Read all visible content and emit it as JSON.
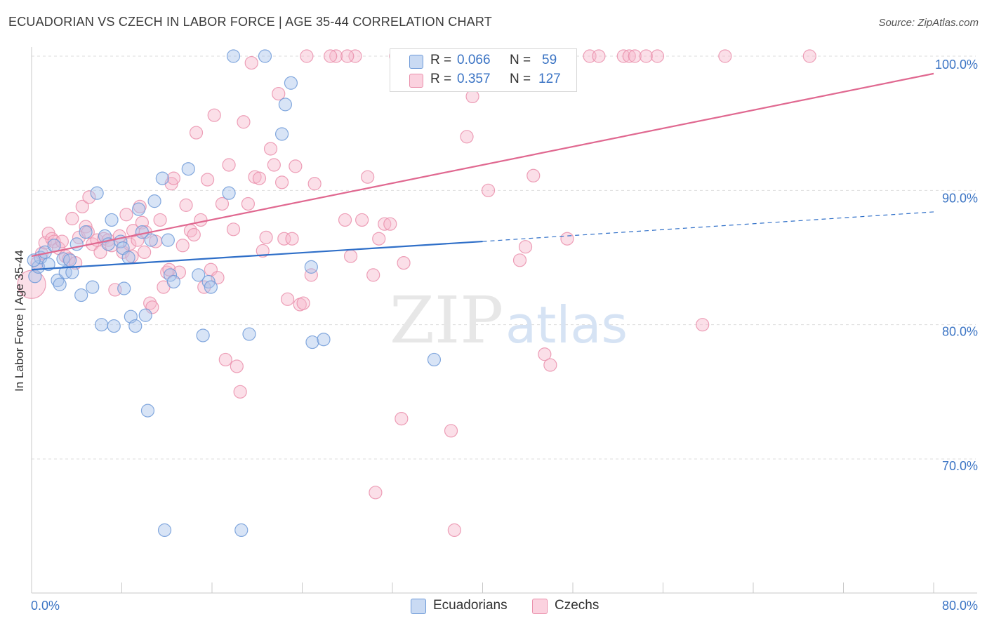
{
  "header": {
    "title": "ECUADORIAN VS CZECH IN LABOR FORCE | AGE 35-44 CORRELATION CHART",
    "source": "Source: ZipAtlas.com"
  },
  "watermark": {
    "zip": "ZIP",
    "atlas": "atlas"
  },
  "legend": {
    "rows": [
      {
        "r_label": "R = ",
        "r_value": "0.066",
        "n_label": "N = ",
        "n_value": "59",
        "color": "#a9c4ec"
      },
      {
        "r_label": "R = ",
        "r_value": "0.357",
        "n_label": "N = ",
        "n_value": "127",
        "color": "#f6b8cb"
      }
    ],
    "bottom": [
      "Ecuadorians",
      "Czechs"
    ]
  },
  "colors": {
    "ecuadorians_fill": "#a9c4ec",
    "ecuadorians_stroke": "#6e9ad8",
    "ecuadorians_line": "#2f6fc8",
    "czechs_fill": "#f6b8cb",
    "czechs_stroke": "#ea8fab",
    "czechs_line": "#e06890",
    "axis_label": "#3b74c4",
    "grid": "#dddddd"
  },
  "chart_data": {
    "type": "scatter",
    "title": "ECUADORIAN VS CZECH IN LABOR FORCE | AGE 35-44 CORRELATION CHART",
    "xlabel": "",
    "ylabel": "In Labor Force | Age 35-44",
    "xlim": [
      0,
      80
    ],
    "ylim": [
      61,
      100.5
    ],
    "x_tick_labels": [
      "0.0%",
      "80.0%"
    ],
    "y_ticks": [
      70,
      80,
      90,
      100
    ],
    "y_tick_labels": [
      "70.0%",
      "80.0%",
      "90.0%",
      "100.0%"
    ],
    "grid": true,
    "legend_position": "top-center",
    "series": [
      {
        "name": "Ecuadorians",
        "R": 0.066,
        "N": 59,
        "trend": {
          "x": [
            0,
            40
          ],
          "y": [
            84.1,
            86.2
          ],
          "dashed_extension": {
            "x": [
              40,
              80
            ],
            "y": [
              86.2,
              88.4
            ]
          }
        },
        "points": [
          [
            0.3,
            83.6
          ],
          [
            0.6,
            84.3
          ],
          [
            0.8,
            85.0
          ],
          [
            1.2,
            85.4
          ],
          [
            1.5,
            84.5
          ],
          [
            2.0,
            85.9
          ],
          [
            2.3,
            83.3
          ],
          [
            2.5,
            83.0
          ],
          [
            2.8,
            84.9
          ],
          [
            3.0,
            83.9
          ],
          [
            3.4,
            84.8
          ],
          [
            3.6,
            83.9
          ],
          [
            4.0,
            86.0
          ],
          [
            4.4,
            82.2
          ],
          [
            4.8,
            86.9
          ],
          [
            5.4,
            82.8
          ],
          [
            5.8,
            89.8
          ],
          [
            6.2,
            80.0
          ],
          [
            6.5,
            86.6
          ],
          [
            6.8,
            86.0
          ],
          [
            7.1,
            87.8
          ],
          [
            7.3,
            79.9
          ],
          [
            7.9,
            86.2
          ],
          [
            8.1,
            85.7
          ],
          [
            8.2,
            82.7
          ],
          [
            8.6,
            85.0
          ],
          [
            8.8,
            80.6
          ],
          [
            9.2,
            79.9
          ],
          [
            9.5,
            88.6
          ],
          [
            9.8,
            86.9
          ],
          [
            10.1,
            80.7
          ],
          [
            10.3,
            73.6
          ],
          [
            10.6,
            86.3
          ],
          [
            10.9,
            89.2
          ],
          [
            11.6,
            90.9
          ],
          [
            11.8,
            64.7
          ],
          [
            12.1,
            86.3
          ],
          [
            12.3,
            83.7
          ],
          [
            12.6,
            83.2
          ],
          [
            13.9,
            91.6
          ],
          [
            14.8,
            83.7
          ],
          [
            15.2,
            79.2
          ],
          [
            15.7,
            83.2
          ],
          [
            15.9,
            82.8
          ],
          [
            17.5,
            89.8
          ],
          [
            17.9,
            100.0
          ],
          [
            18.6,
            64.7
          ],
          [
            19.3,
            79.3
          ],
          [
            20.7,
            100.0
          ],
          [
            22.2,
            94.2
          ],
          [
            22.5,
            96.4
          ],
          [
            23.0,
            98.0
          ],
          [
            24.8,
            84.3
          ],
          [
            24.9,
            78.7
          ],
          [
            25.9,
            78.9
          ],
          [
            35.7,
            77.4
          ],
          [
            34.8,
            100.0
          ],
          [
            35.2,
            99.8
          ],
          [
            0.2,
            84.8
          ]
        ]
      },
      {
        "name": "Czechs",
        "R": 0.357,
        "N": 127,
        "trend": {
          "x": [
            0,
            80
          ],
          "y": [
            85.1,
            98.7
          ]
        },
        "points": [
          [
            0.0,
            83.0
          ],
          [
            0.5,
            84.6
          ],
          [
            0.9,
            85.3
          ],
          [
            1.2,
            86.1
          ],
          [
            1.5,
            86.8
          ],
          [
            1.8,
            86.4
          ],
          [
            2.0,
            86.2
          ],
          [
            2.4,
            85.7
          ],
          [
            2.7,
            86.2
          ],
          [
            3.0,
            85.1
          ],
          [
            3.3,
            84.9
          ],
          [
            3.6,
            87.9
          ],
          [
            3.9,
            84.6
          ],
          [
            4.2,
            86.5
          ],
          [
            4.5,
            88.8
          ],
          [
            4.8,
            87.3
          ],
          [
            5.0,
            86.9
          ],
          [
            5.1,
            89.5
          ],
          [
            5.4,
            86.0
          ],
          [
            5.8,
            86.3
          ],
          [
            6.1,
            85.4
          ],
          [
            6.4,
            86.4
          ],
          [
            6.8,
            86.3
          ],
          [
            7.1,
            85.9
          ],
          [
            7.4,
            82.6
          ],
          [
            7.8,
            86.6
          ],
          [
            8.1,
            85.4
          ],
          [
            8.4,
            88.2
          ],
          [
            8.7,
            86.0
          ],
          [
            8.9,
            85.1
          ],
          [
            9.0,
            87.0
          ],
          [
            9.4,
            86.3
          ],
          [
            9.6,
            88.8
          ],
          [
            9.8,
            87.6
          ],
          [
            10.0,
            85.4
          ],
          [
            10.1,
            86.9
          ],
          [
            10.5,
            81.6
          ],
          [
            10.7,
            81.3
          ],
          [
            11.0,
            86.2
          ],
          [
            11.4,
            87.8
          ],
          [
            11.7,
            82.8
          ],
          [
            12.0,
            83.9
          ],
          [
            12.2,
            84.1
          ],
          [
            12.4,
            90.5
          ],
          [
            12.6,
            90.9
          ],
          [
            13.1,
            83.9
          ],
          [
            13.4,
            85.9
          ],
          [
            13.7,
            88.9
          ],
          [
            14.1,
            87.0
          ],
          [
            14.4,
            86.7
          ],
          [
            14.6,
            94.3
          ],
          [
            15.0,
            87.8
          ],
          [
            15.3,
            82.8
          ],
          [
            15.6,
            90.8
          ],
          [
            15.9,
            84.1
          ],
          [
            16.2,
            95.6
          ],
          [
            16.5,
            83.5
          ],
          [
            16.9,
            89.0
          ],
          [
            17.2,
            77.4
          ],
          [
            17.5,
            91.9
          ],
          [
            17.9,
            87.1
          ],
          [
            18.2,
            76.9
          ],
          [
            18.5,
            75.0
          ],
          [
            18.8,
            95.1
          ],
          [
            19.2,
            89.0
          ],
          [
            19.5,
            99.5
          ],
          [
            19.8,
            91.0
          ],
          [
            20.2,
            90.9
          ],
          [
            20.5,
            85.5
          ],
          [
            20.8,
            86.5
          ],
          [
            21.2,
            93.1
          ],
          [
            21.5,
            91.9
          ],
          [
            21.9,
            97.2
          ],
          [
            22.2,
            90.6
          ],
          [
            22.4,
            86.4
          ],
          [
            22.7,
            81.9
          ],
          [
            23.1,
            86.4
          ],
          [
            23.4,
            91.8
          ],
          [
            23.8,
            81.5
          ],
          [
            24.1,
            81.6
          ],
          [
            24.4,
            100.0
          ],
          [
            24.8,
            83.7
          ],
          [
            25.1,
            90.5
          ],
          [
            27.0,
            100.0
          ],
          [
            27.8,
            87.8
          ],
          [
            28.3,
            85.1
          ],
          [
            28.7,
            100.0
          ],
          [
            29.3,
            87.8
          ],
          [
            29.8,
            91.0
          ],
          [
            30.3,
            83.7
          ],
          [
            30.8,
            86.4
          ],
          [
            31.3,
            87.5
          ],
          [
            31.8,
            87.5
          ],
          [
            32.3,
            100.0
          ],
          [
            32.8,
            73.0
          ],
          [
            33.0,
            84.6
          ],
          [
            35.0,
            100.0
          ],
          [
            37.0,
            100.0
          ],
          [
            37.2,
            72.1
          ],
          [
            37.5,
            64.7
          ],
          [
            38.0,
            100.0
          ],
          [
            38.6,
            94.0
          ],
          [
            39.1,
            97.0
          ],
          [
            40.5,
            90.0
          ],
          [
            41.5,
            100.0
          ],
          [
            43.3,
            84.8
          ],
          [
            43.8,
            85.8
          ],
          [
            44.5,
            91.1
          ],
          [
            45.5,
            77.8
          ],
          [
            46.0,
            77.0
          ],
          [
            47.5,
            86.4
          ],
          [
            49.5,
            100.0
          ],
          [
            50.3,
            100.0
          ],
          [
            52.5,
            100.0
          ],
          [
            53.0,
            100.0
          ],
          [
            53.5,
            100.0
          ],
          [
            54.5,
            100.0
          ],
          [
            55.5,
            100.0
          ],
          [
            59.5,
            80.0
          ],
          [
            61.5,
            100.0
          ],
          [
            69.0,
            100.0
          ],
          [
            30.5,
            67.5
          ],
          [
            26.5,
            100.0
          ],
          [
            36.0,
            100.0
          ],
          [
            28.0,
            100.0
          ],
          [
            42.5,
            100.0
          ],
          [
            45.0,
            100.0
          ]
        ]
      }
    ]
  }
}
